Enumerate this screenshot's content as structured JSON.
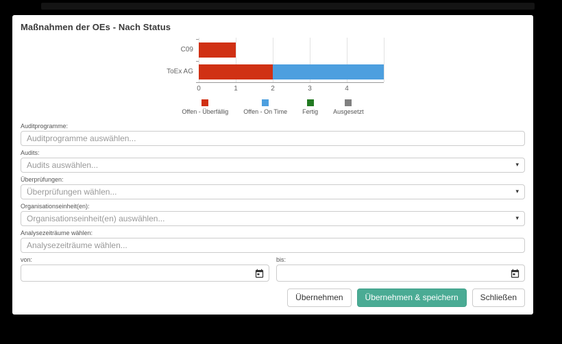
{
  "window": {
    "title": "Maßnahmen der OEs - Nach Status"
  },
  "chart_data": {
    "type": "bar",
    "orientation": "horizontal",
    "stacked": true,
    "categories": [
      "C09",
      "ToEx AG"
    ],
    "series": [
      {
        "name": "Offen - Überfällig",
        "color": "#d03114",
        "values": [
          1,
          2
        ]
      },
      {
        "name": "Offen - On Time",
        "color": "#4d9fdf",
        "values": [
          0,
          3
        ]
      },
      {
        "name": "Fertig",
        "color": "#227a22",
        "values": [
          0,
          0
        ]
      },
      {
        "name": "Ausgesetzt",
        "color": "#808080",
        "values": [
          0,
          0
        ]
      }
    ],
    "xlim": [
      0,
      5
    ],
    "xticks": [
      0,
      1,
      2,
      3,
      4
    ],
    "grid": true,
    "legend_position": "bottom"
  },
  "form": {
    "fields": [
      {
        "label": "Auditprogramme:",
        "placeholder": "Auditprogramme auswählen...",
        "value": "",
        "dropdown": false
      },
      {
        "label": "Audits:",
        "placeholder": "Audits auswählen...",
        "value": "",
        "dropdown": true
      },
      {
        "label": "Überprüfungen:",
        "placeholder": "Überprüfungen wählen...",
        "value": "",
        "dropdown": true
      },
      {
        "label": "Organisationseinheit(en):",
        "placeholder": "Organisationseinheit(en) auswählen...",
        "value": "",
        "dropdown": true
      },
      {
        "label": "Analysezeiträume wählen:",
        "placeholder": "Analysezeiträume wählen...",
        "value": "",
        "dropdown": false
      }
    ],
    "date_from": {
      "label": "von:",
      "value": ""
    },
    "date_to": {
      "label": "bis:",
      "value": ""
    }
  },
  "footer": {
    "apply_label": "Übernehmen",
    "apply_save_label": "Übernehmen & speichern",
    "close_label": "Schließen",
    "accent_color": "#4aab94"
  }
}
